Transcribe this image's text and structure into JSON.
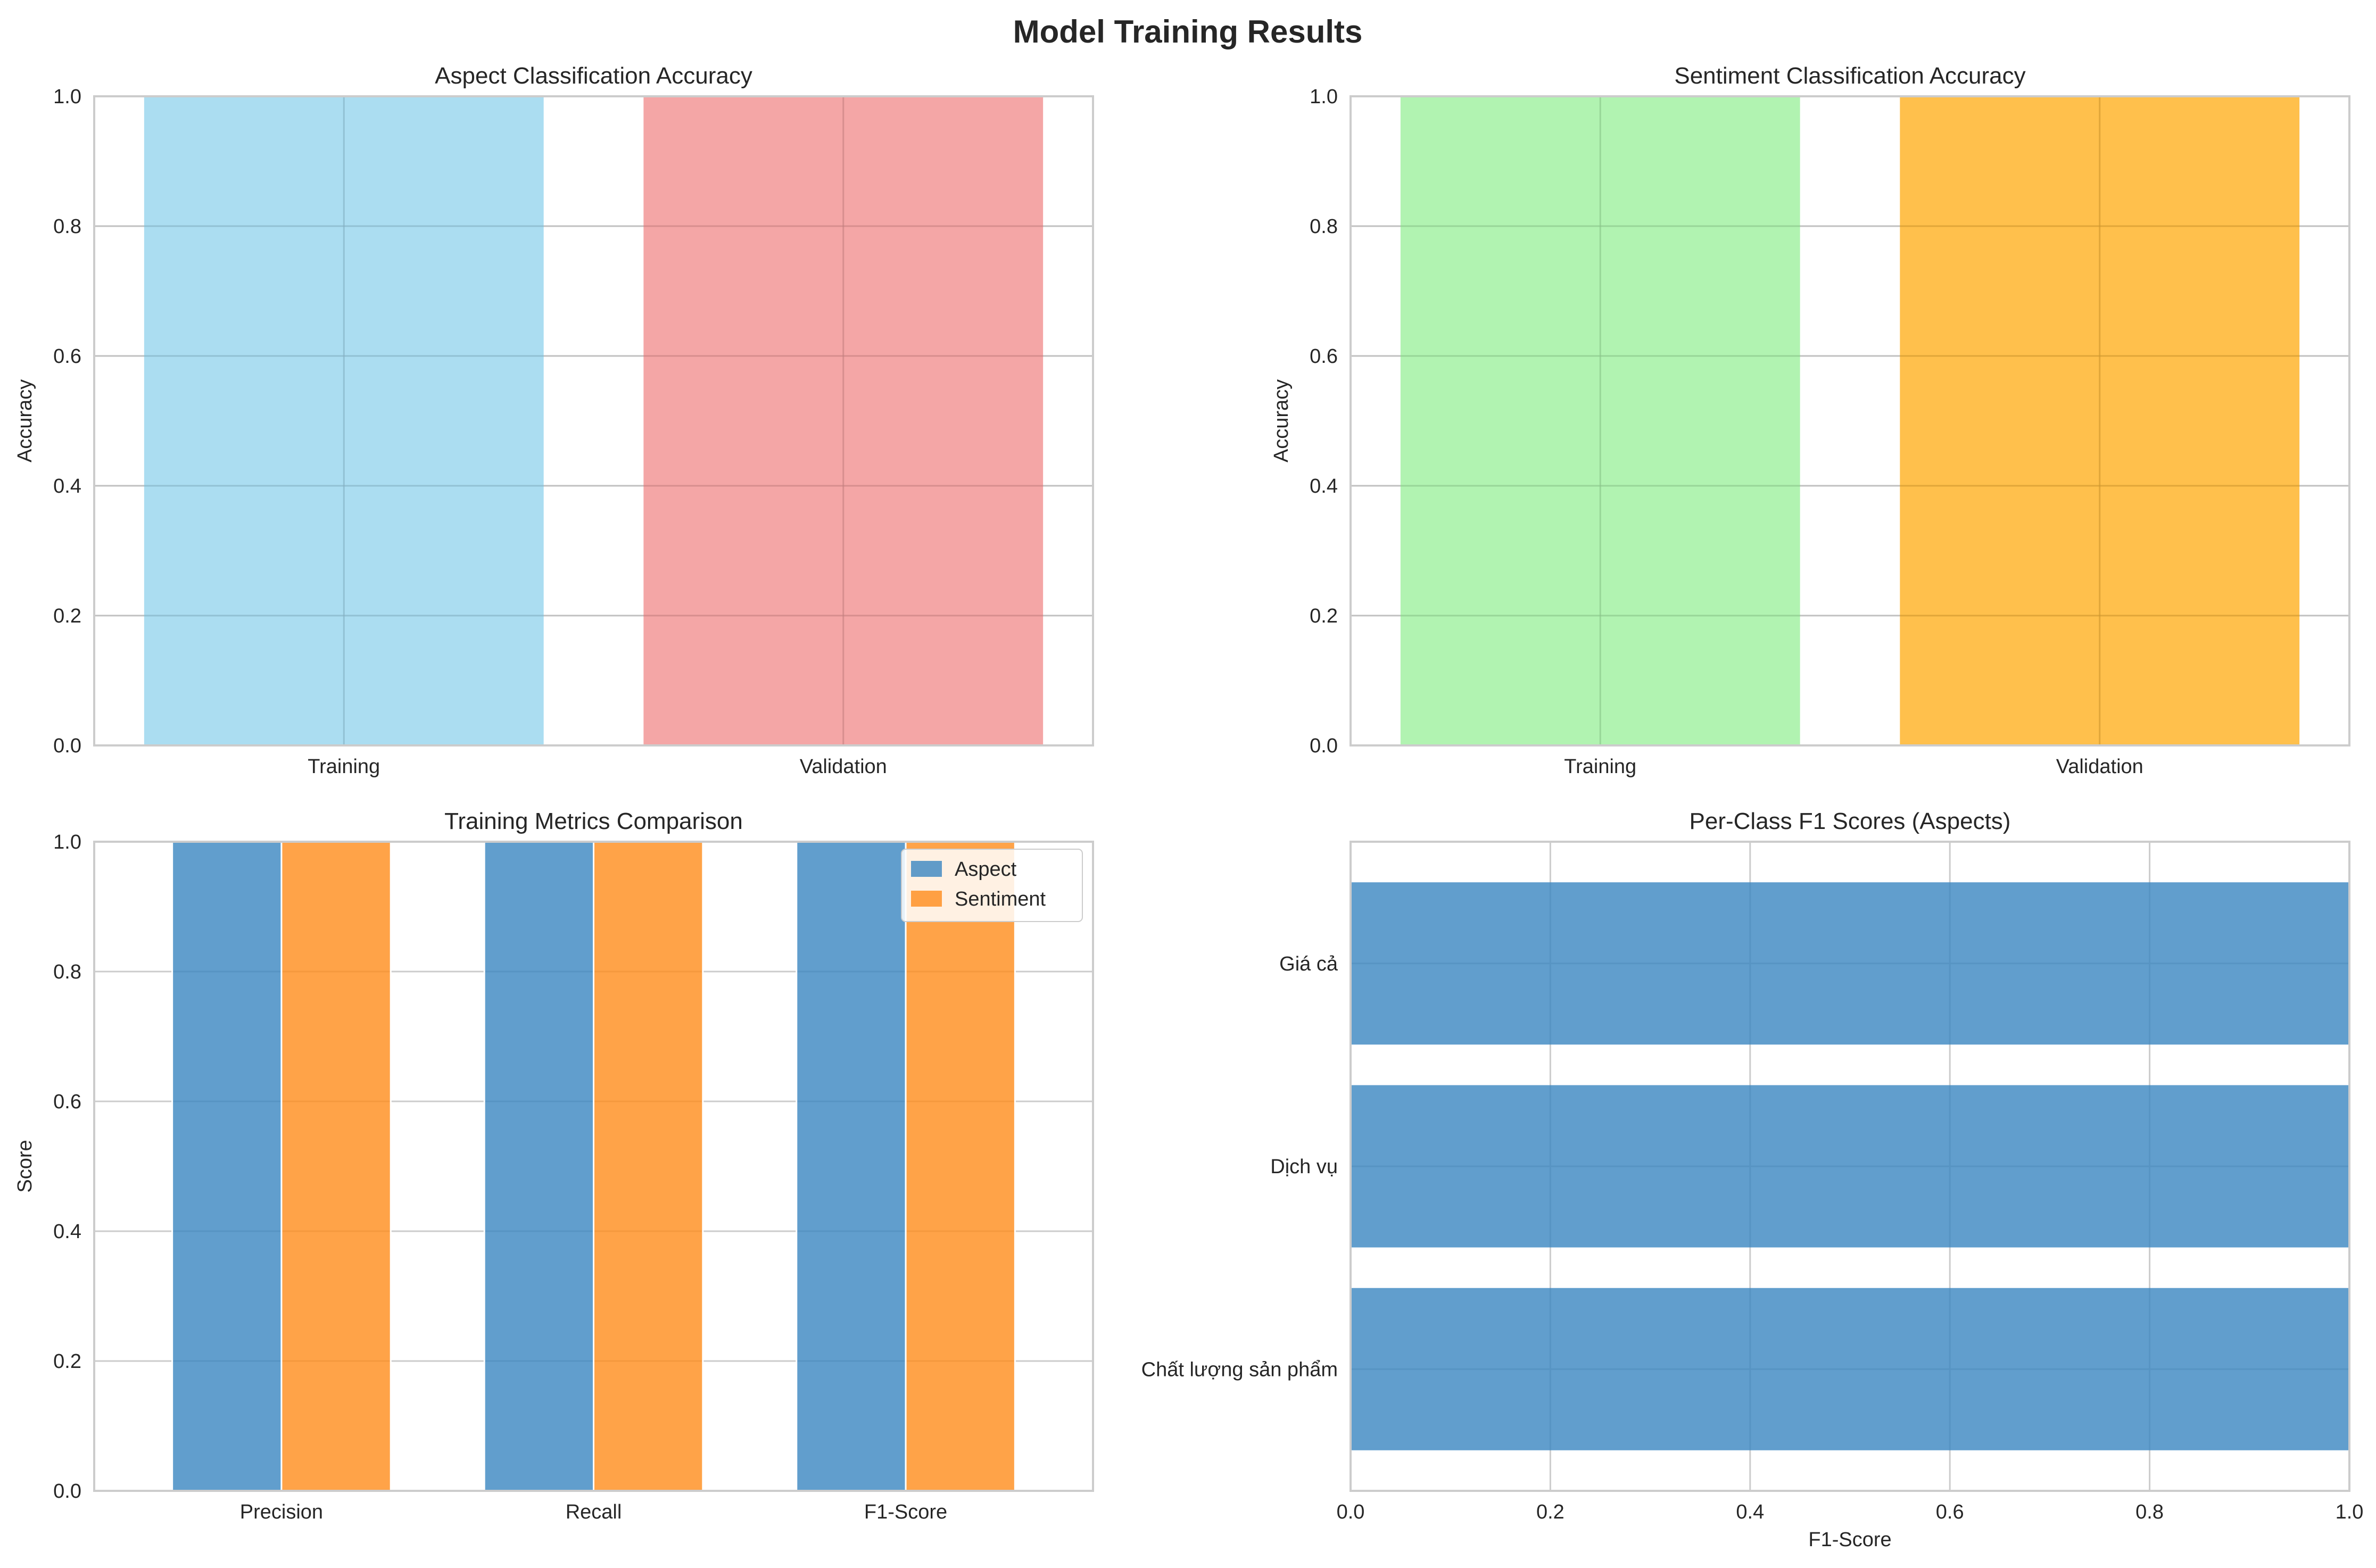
{
  "figure": {
    "title": "Model Training Results"
  },
  "chart_data": [
    {
      "type": "bar",
      "title": "Aspect Classification Accuracy",
      "xlabel": "",
      "ylabel": "Accuracy",
      "ylim": [
        0,
        1.0
      ],
      "yticks": [
        "0.0",
        "0.2",
        "0.4",
        "0.6",
        "0.8",
        "1.0"
      ],
      "categories": [
        "Training",
        "Validation"
      ],
      "values": [
        1.0,
        1.0
      ],
      "colors": [
        "#87CEEB",
        "#F08080"
      ],
      "grid": true
    },
    {
      "type": "bar",
      "title": "Sentiment Classification Accuracy",
      "xlabel": "",
      "ylabel": "Accuracy",
      "ylim": [
        0,
        1.0
      ],
      "yticks": [
        "0.0",
        "0.2",
        "0.4",
        "0.6",
        "0.8",
        "1.0"
      ],
      "categories": [
        "Training",
        "Validation"
      ],
      "values": [
        1.0,
        1.0
      ],
      "colors": [
        "#90EE90",
        "#FFA500"
      ],
      "grid": true
    },
    {
      "type": "bar",
      "title": "Training Metrics Comparison",
      "xlabel": "",
      "ylabel": "Score",
      "ylim": [
        0,
        1.0
      ],
      "yticks": [
        "0.0",
        "0.2",
        "0.4",
        "0.6",
        "0.8",
        "1.0"
      ],
      "categories": [
        "Precision",
        "Recall",
        "F1-Score"
      ],
      "series": [
        {
          "name": "Aspect",
          "values": [
            1.0,
            1.0,
            1.0
          ],
          "color": "#3a86c0"
        },
        {
          "name": "Sentiment",
          "values": [
            1.0,
            1.0,
            1.0
          ],
          "color": "#ff8c1a"
        }
      ],
      "legend": "top-right",
      "grid": true
    },
    {
      "type": "barh",
      "title": "Per-Class F1 Scores (Aspects)",
      "xlabel": "F1-Score",
      "ylabel": "",
      "xlim": [
        0,
        1.0
      ],
      "xticks": [
        "0.0",
        "0.2",
        "0.4",
        "0.6",
        "0.8",
        "1.0"
      ],
      "categories": [
        "Chất lượng sản phẩm",
        "Dịch vụ",
        "Giá cả"
      ],
      "values": [
        1.0,
        1.0,
        1.0
      ],
      "colors": [
        "#3a86c0"
      ],
      "grid": true
    }
  ]
}
